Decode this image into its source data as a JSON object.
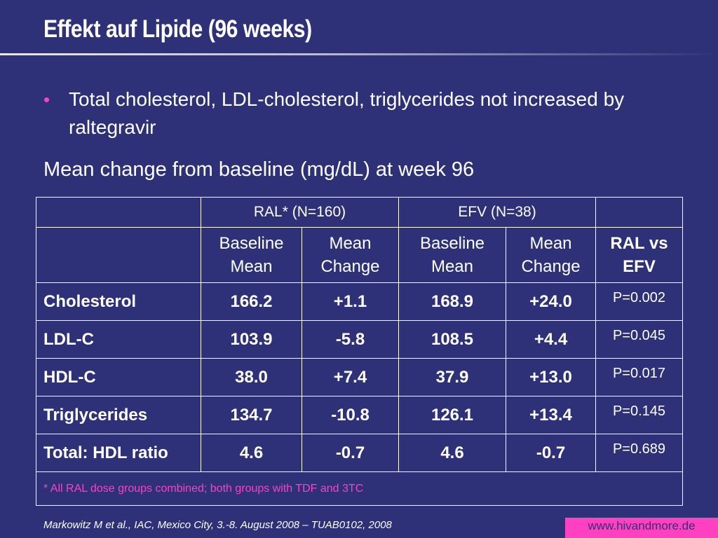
{
  "slide": {
    "title": "Effekt auf Lipide (96 weeks)",
    "bullet_marker": "•",
    "bullet_text": "Total cholesterol, LDL-cholesterol, triglycerides not increased by raltegravir",
    "subheading": "Mean change from baseline (mg/dL) at week 96"
  },
  "table": {
    "group_headers": [
      "",
      "RAL* (N=160)",
      "EFV (N=38)",
      ""
    ],
    "sub_headers": [
      "",
      "Baseline Mean",
      "Mean Change",
      "Baseline Mean",
      "Mean Change",
      "RAL vs EFV"
    ],
    "rows": [
      [
        "Cholesterol",
        "166.2",
        "+1.1",
        "168.9",
        "+24.0",
        "P=0.002"
      ],
      [
        "LDL-C",
        "103.9",
        "-5.8",
        "108.5",
        "+4.4",
        "P=0.045"
      ],
      [
        "HDL-C",
        "38.0",
        "+7.4",
        "37.9",
        "+13.0",
        "P=0.017"
      ],
      [
        "Triglycerides",
        "134.7",
        "-10.8",
        "126.1",
        "+13.4",
        "P=0.145"
      ],
      [
        "Total: HDL ratio",
        "4.6",
        "-0.7",
        "4.6",
        "-0.7",
        "P=0.689"
      ]
    ],
    "footnote": "* All RAL dose groups combined;  both groups with TDF and 3TC"
  },
  "footer": {
    "citation": "Markowitz M et al., IAC, Mexico City, 3.-8. August 2008 – TUAB0102, 2008",
    "website": "www.hivandmore.de"
  },
  "colors": {
    "background": "#2e3178",
    "accent": "#ff40c0",
    "text": "#ffffff"
  }
}
